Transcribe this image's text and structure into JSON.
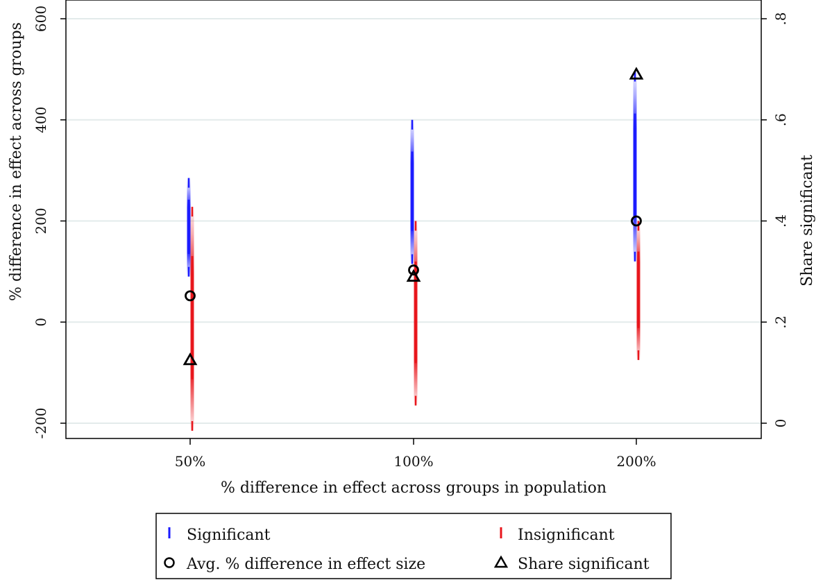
{
  "chart_data": {
    "type": "scatter",
    "xlabel": "% difference in effect across groups in population",
    "ylabel": "% difference in effect across groups",
    "y2label": "Share significant",
    "categories": [
      "50%",
      "100%",
      "200%"
    ],
    "ylim": [
      -225,
      600
    ],
    "y2lim": [
      0,
      0.8
    ],
    "yticks": [
      -200,
      0,
      200,
      400,
      600
    ],
    "y2ticks": [
      {
        "value": 0,
        "label": "0"
      },
      {
        "value": 0.2,
        "label": ".2"
      },
      {
        "value": 0.4,
        "label": ".4"
      },
      {
        "value": 0.6,
        "label": ".6"
      },
      {
        "value": 0.8,
        "label": ".8"
      }
    ],
    "grid": true,
    "legend_position": "bottom",
    "series": [
      {
        "name": "Significant",
        "mark": "dash",
        "color": "#1a1aff",
        "ranges": [
          {
            "category": "50%",
            "min": 90,
            "max": 285
          },
          {
            "category": "100%",
            "min": 115,
            "max": 400
          },
          {
            "category": "200%",
            "min": 120,
            "max": 495
          }
        ]
      },
      {
        "name": "Insignificant",
        "mark": "dash",
        "color": "#e8151b",
        "ranges": [
          {
            "category": "50%",
            "min": -215,
            "max": 228
          },
          {
            "category": "100%",
            "min": -165,
            "max": 200
          },
          {
            "category": "200%",
            "min": -75,
            "max": 200
          }
        ]
      },
      {
        "name": "Avg. % difference in effect size",
        "mark": "circle",
        "axis": "left",
        "values": [
          52,
          103,
          200
        ]
      },
      {
        "name": "Share significant",
        "mark": "triangle",
        "axis": "right",
        "values": [
          0.125,
          0.29,
          0.69
        ]
      }
    ]
  }
}
